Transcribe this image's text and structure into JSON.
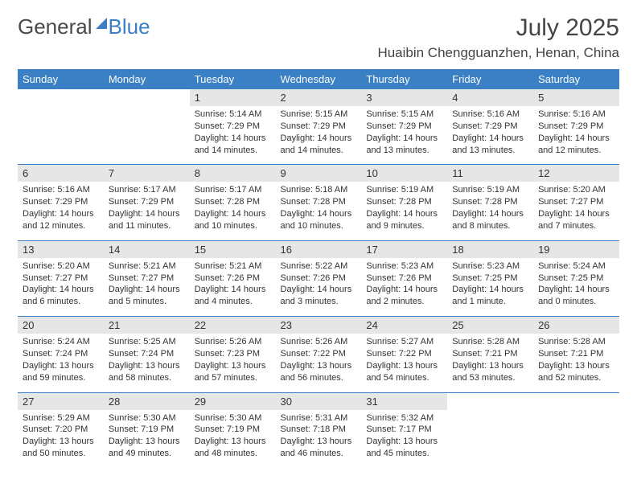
{
  "brand": {
    "part1": "General",
    "part2": "Blue"
  },
  "title": "July 2025",
  "location": "Huaibin Chengguanzhen, Henan, China",
  "colors": {
    "accent": "#3b7fc4",
    "header_bg": "#3b7fc4",
    "header_text": "#ffffff",
    "daynum_bg": "#e6e6e6",
    "text": "#333333",
    "background": "#ffffff"
  },
  "typography": {
    "title_fontsize": 30,
    "location_fontsize": 17,
    "dayhead_fontsize": 13,
    "body_fontsize": 11
  },
  "dayNames": [
    "Sunday",
    "Monday",
    "Tuesday",
    "Wednesday",
    "Thursday",
    "Friday",
    "Saturday"
  ],
  "weeks": [
    [
      null,
      null,
      {
        "n": "1",
        "sr": "Sunrise: 5:14 AM",
        "ss": "Sunset: 7:29 PM",
        "dl": "Daylight: 14 hours and 14 minutes."
      },
      {
        "n": "2",
        "sr": "Sunrise: 5:15 AM",
        "ss": "Sunset: 7:29 PM",
        "dl": "Daylight: 14 hours and 14 minutes."
      },
      {
        "n": "3",
        "sr": "Sunrise: 5:15 AM",
        "ss": "Sunset: 7:29 PM",
        "dl": "Daylight: 14 hours and 13 minutes."
      },
      {
        "n": "4",
        "sr": "Sunrise: 5:16 AM",
        "ss": "Sunset: 7:29 PM",
        "dl": "Daylight: 14 hours and 13 minutes."
      },
      {
        "n": "5",
        "sr": "Sunrise: 5:16 AM",
        "ss": "Sunset: 7:29 PM",
        "dl": "Daylight: 14 hours and 12 minutes."
      }
    ],
    [
      {
        "n": "6",
        "sr": "Sunrise: 5:16 AM",
        "ss": "Sunset: 7:29 PM",
        "dl": "Daylight: 14 hours and 12 minutes."
      },
      {
        "n": "7",
        "sr": "Sunrise: 5:17 AM",
        "ss": "Sunset: 7:29 PM",
        "dl": "Daylight: 14 hours and 11 minutes."
      },
      {
        "n": "8",
        "sr": "Sunrise: 5:17 AM",
        "ss": "Sunset: 7:28 PM",
        "dl": "Daylight: 14 hours and 10 minutes."
      },
      {
        "n": "9",
        "sr": "Sunrise: 5:18 AM",
        "ss": "Sunset: 7:28 PM",
        "dl": "Daylight: 14 hours and 10 minutes."
      },
      {
        "n": "10",
        "sr": "Sunrise: 5:19 AM",
        "ss": "Sunset: 7:28 PM",
        "dl": "Daylight: 14 hours and 9 minutes."
      },
      {
        "n": "11",
        "sr": "Sunrise: 5:19 AM",
        "ss": "Sunset: 7:28 PM",
        "dl": "Daylight: 14 hours and 8 minutes."
      },
      {
        "n": "12",
        "sr": "Sunrise: 5:20 AM",
        "ss": "Sunset: 7:27 PM",
        "dl": "Daylight: 14 hours and 7 minutes."
      }
    ],
    [
      {
        "n": "13",
        "sr": "Sunrise: 5:20 AM",
        "ss": "Sunset: 7:27 PM",
        "dl": "Daylight: 14 hours and 6 minutes."
      },
      {
        "n": "14",
        "sr": "Sunrise: 5:21 AM",
        "ss": "Sunset: 7:27 PM",
        "dl": "Daylight: 14 hours and 5 minutes."
      },
      {
        "n": "15",
        "sr": "Sunrise: 5:21 AM",
        "ss": "Sunset: 7:26 PM",
        "dl": "Daylight: 14 hours and 4 minutes."
      },
      {
        "n": "16",
        "sr": "Sunrise: 5:22 AM",
        "ss": "Sunset: 7:26 PM",
        "dl": "Daylight: 14 hours and 3 minutes."
      },
      {
        "n": "17",
        "sr": "Sunrise: 5:23 AM",
        "ss": "Sunset: 7:26 PM",
        "dl": "Daylight: 14 hours and 2 minutes."
      },
      {
        "n": "18",
        "sr": "Sunrise: 5:23 AM",
        "ss": "Sunset: 7:25 PM",
        "dl": "Daylight: 14 hours and 1 minute."
      },
      {
        "n": "19",
        "sr": "Sunrise: 5:24 AM",
        "ss": "Sunset: 7:25 PM",
        "dl": "Daylight: 14 hours and 0 minutes."
      }
    ],
    [
      {
        "n": "20",
        "sr": "Sunrise: 5:24 AM",
        "ss": "Sunset: 7:24 PM",
        "dl": "Daylight: 13 hours and 59 minutes."
      },
      {
        "n": "21",
        "sr": "Sunrise: 5:25 AM",
        "ss": "Sunset: 7:24 PM",
        "dl": "Daylight: 13 hours and 58 minutes."
      },
      {
        "n": "22",
        "sr": "Sunrise: 5:26 AM",
        "ss": "Sunset: 7:23 PM",
        "dl": "Daylight: 13 hours and 57 minutes."
      },
      {
        "n": "23",
        "sr": "Sunrise: 5:26 AM",
        "ss": "Sunset: 7:22 PM",
        "dl": "Daylight: 13 hours and 56 minutes."
      },
      {
        "n": "24",
        "sr": "Sunrise: 5:27 AM",
        "ss": "Sunset: 7:22 PM",
        "dl": "Daylight: 13 hours and 54 minutes."
      },
      {
        "n": "25",
        "sr": "Sunrise: 5:28 AM",
        "ss": "Sunset: 7:21 PM",
        "dl": "Daylight: 13 hours and 53 minutes."
      },
      {
        "n": "26",
        "sr": "Sunrise: 5:28 AM",
        "ss": "Sunset: 7:21 PM",
        "dl": "Daylight: 13 hours and 52 minutes."
      }
    ],
    [
      {
        "n": "27",
        "sr": "Sunrise: 5:29 AM",
        "ss": "Sunset: 7:20 PM",
        "dl": "Daylight: 13 hours and 50 minutes."
      },
      {
        "n": "28",
        "sr": "Sunrise: 5:30 AM",
        "ss": "Sunset: 7:19 PM",
        "dl": "Daylight: 13 hours and 49 minutes."
      },
      {
        "n": "29",
        "sr": "Sunrise: 5:30 AM",
        "ss": "Sunset: 7:19 PM",
        "dl": "Daylight: 13 hours and 48 minutes."
      },
      {
        "n": "30",
        "sr": "Sunrise: 5:31 AM",
        "ss": "Sunset: 7:18 PM",
        "dl": "Daylight: 13 hours and 46 minutes."
      },
      {
        "n": "31",
        "sr": "Sunrise: 5:32 AM",
        "ss": "Sunset: 7:17 PM",
        "dl": "Daylight: 13 hours and 45 minutes."
      },
      null,
      null
    ]
  ]
}
